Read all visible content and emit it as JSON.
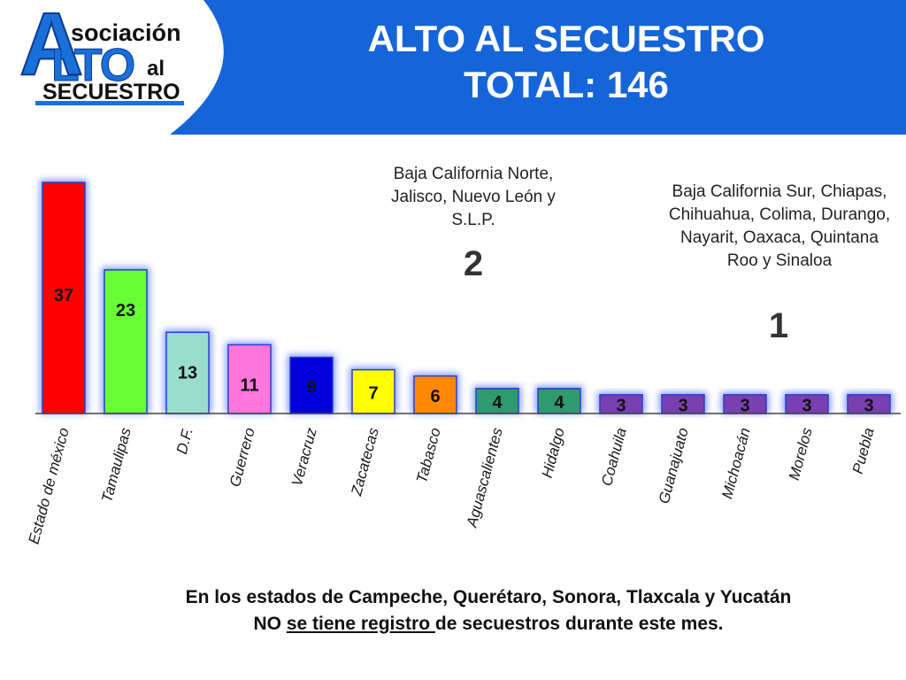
{
  "header": {
    "logo": {
      "part1": "sociación",
      "part2": "LTO",
      "part3": "al",
      "part4": "SECUESTRO",
      "big_letter": "A"
    },
    "title_line1": "ALTO AL SECUESTRO",
    "title_line2": "TOTAL: 146",
    "banner_color": "#1565d8"
  },
  "annotations": [
    {
      "text": "Baja California Norte, Jalisco, Nuevo León y S.L.P.",
      "value": "2"
    },
    {
      "text": "Baja California Sur, Chiapas, Chihuahua, Colima, Durango, Nayarit, Oaxaca, Quintana Roo y Sinaloa",
      "value": "1"
    }
  ],
  "footer": {
    "line1": "En los estados de Campeche, Querétaro, Sonora, Tlaxcala y Yucatán",
    "line2_a": "NO ",
    "line2_b": "se tiene registro ",
    "line2_c": "de secuestros durante este mes."
  },
  "chart_data": {
    "type": "bar",
    "categories": [
      "Estado de méxico",
      "Tamaulipas",
      "D.F.",
      "Guerrero",
      "Veracruz",
      "Zacatecas",
      "Tabasco",
      "Aguascalientes",
      "Hidalgo",
      "Coahuila",
      "Guanajuato",
      "Michoacán",
      "Morelos",
      "Puebla"
    ],
    "values": [
      37,
      23,
      13,
      11,
      9,
      7,
      6,
      4,
      4,
      3,
      3,
      3,
      3,
      3
    ],
    "colors": [
      "#ff0000",
      "#66ff33",
      "#99ddcc",
      "#ff77dd",
      "#0000dd",
      "#ffff00",
      "#ff8800",
      "#2e9a6e",
      "#2e9a6e",
      "#7a3fb0",
      "#7a3fb0",
      "#7a3fb0",
      "#7a3fb0",
      "#7a3fb0"
    ],
    "title": "",
    "xlabel": "",
    "ylabel": "",
    "ylim": [
      0,
      37
    ],
    "grid": false,
    "legend": "none"
  }
}
